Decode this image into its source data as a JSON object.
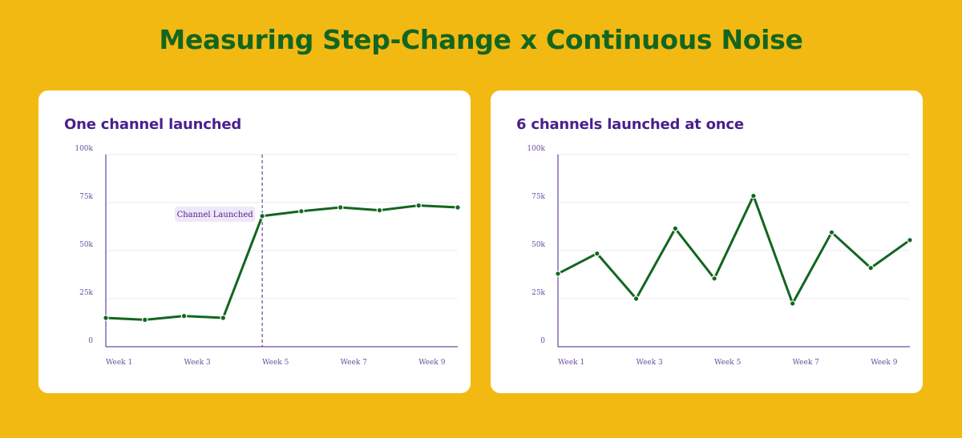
{
  "page": {
    "title": "Measuring Step-Change x Continuous Noise"
  },
  "colors": {
    "background": "#F2B913",
    "title": "#12661F",
    "card_title": "#4A1F8C",
    "line": "#12661F",
    "axis": "#4A1F8C",
    "grid": "#EDEAF2",
    "annotation_bg": "#EFE8F8"
  },
  "chart_data": [
    {
      "type": "line",
      "title": "One channel launched",
      "xlabel": "",
      "ylabel": "",
      "ylim": [
        0,
        100000
      ],
      "x": [
        1,
        2,
        3,
        4,
        5,
        6,
        7,
        8,
        9,
        10
      ],
      "x_tick_labels": [
        {
          "x": 1,
          "label": "Week 1"
        },
        {
          "x": 3,
          "label": "Week 3"
        },
        {
          "x": 5,
          "label": "Week 5"
        },
        {
          "x": 7,
          "label": "Week 7"
        },
        {
          "x": 9,
          "label": "Week 9"
        }
      ],
      "y_tick_labels": [
        {
          "y": 0,
          "label": "0"
        },
        {
          "y": 25000,
          "label": "25k"
        },
        {
          "y": 50000,
          "label": "50k"
        },
        {
          "y": 75000,
          "label": "75k"
        },
        {
          "y": 100000,
          "label": "100k"
        }
      ],
      "series": [
        {
          "values": [
            15000,
            14000,
            16000,
            15000,
            68000,
            70500,
            72500,
            71000,
            73500,
            72500
          ]
        }
      ],
      "annotations": [
        {
          "type": "vline",
          "x": 5,
          "label": "Channel Launched"
        }
      ],
      "grid": true
    },
    {
      "type": "line",
      "title": "6 channels launched at once",
      "xlabel": "",
      "ylabel": "",
      "ylim": [
        0,
        100000
      ],
      "x": [
        1,
        2,
        3,
        4,
        5,
        6,
        7,
        8,
        9,
        10
      ],
      "x_tick_labels": [
        {
          "x": 1,
          "label": "Week 1"
        },
        {
          "x": 3,
          "label": "Week 3"
        },
        {
          "x": 5,
          "label": "Week 5"
        },
        {
          "x": 7,
          "label": "Week 7"
        },
        {
          "x": 9,
          "label": "Week 9"
        }
      ],
      "y_tick_labels": [
        {
          "y": 0,
          "label": "0"
        },
        {
          "y": 25000,
          "label": "25k"
        },
        {
          "y": 50000,
          "label": "50k"
        },
        {
          "y": 75000,
          "label": "75k"
        },
        {
          "y": 100000,
          "label": "100k"
        }
      ],
      "series": [
        {
          "values": [
            38000,
            48500,
            25000,
            61500,
            35500,
            78500,
            22500,
            59500,
            41000,
            55500
          ]
        }
      ],
      "annotations": [],
      "grid": true
    }
  ]
}
